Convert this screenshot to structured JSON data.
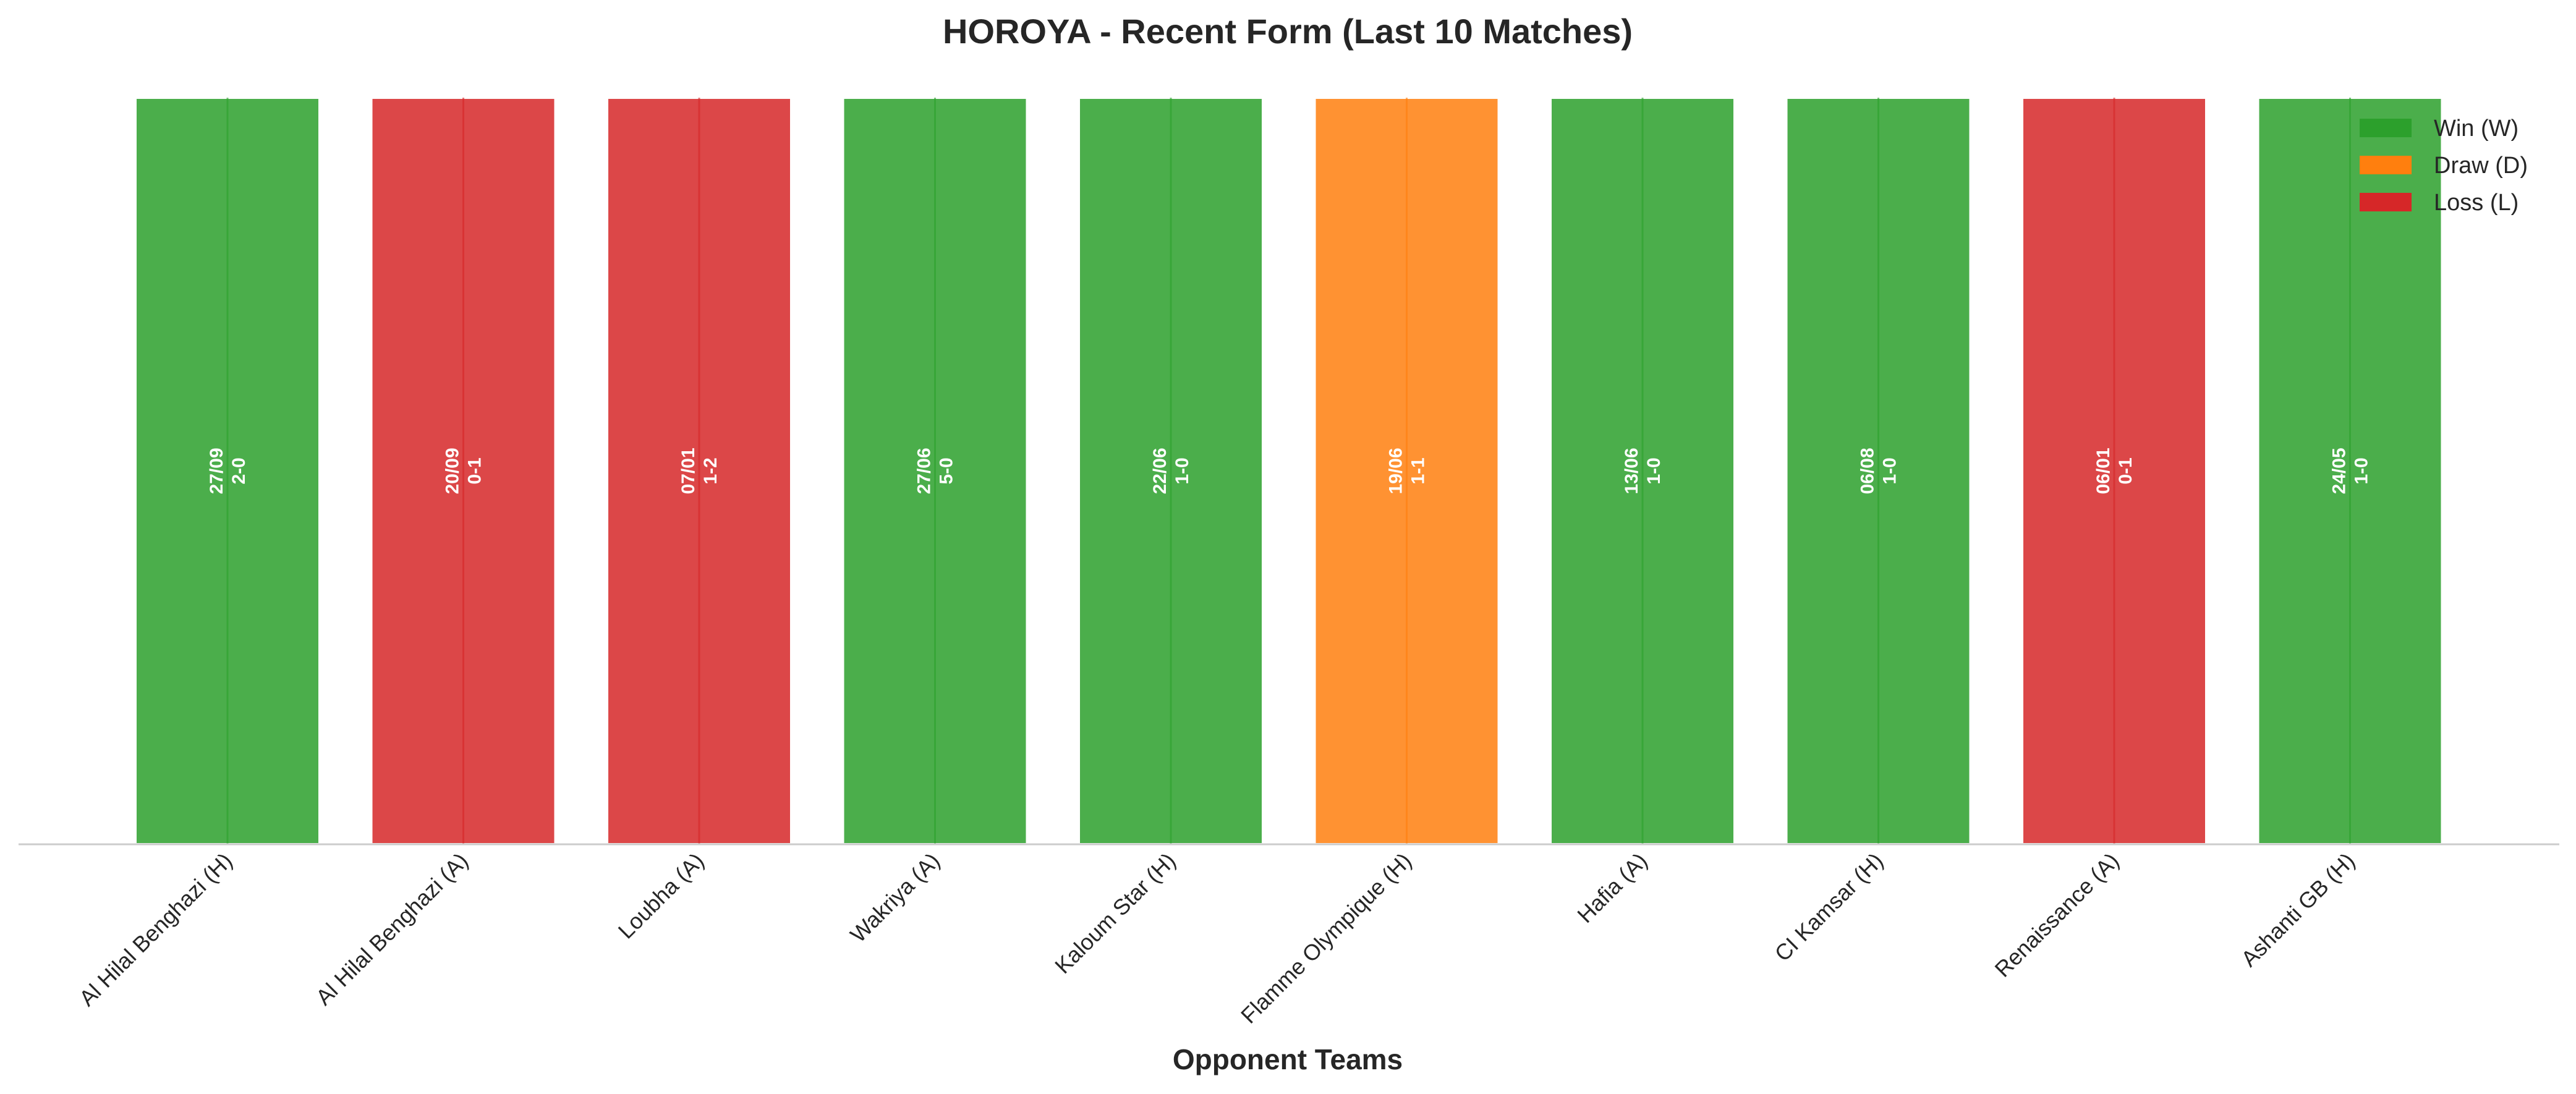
{
  "chart_data": {
    "type": "bar",
    "title": "HOROYA - Recent Form (Last 10 Matches)",
    "xlabel": "Opponent Teams",
    "ylabel": "",
    "ylim": [
      0,
      1
    ],
    "grid": false,
    "legend_position": "top-right",
    "categories": [
      "Al Hilal Benghazi (H)",
      "Al Hilal Benghazi (A)",
      "Loubha (A)",
      "Wakriya (A)",
      "Kaloum Star (H)",
      "Flamme Olympique (H)",
      "Hafia (A)",
      "CI Kamsar (H)",
      "Renaissance (A)",
      "Ashanti GB (H)"
    ],
    "values": [
      1,
      1,
      1,
      1,
      1,
      1,
      1,
      1,
      1,
      1
    ],
    "results": [
      "W",
      "L",
      "L",
      "W",
      "W",
      "D",
      "W",
      "W",
      "L",
      "W"
    ],
    "dates": [
      "27/09",
      "20/09",
      "07/01",
      "27/06",
      "22/06",
      "19/06",
      "13/06",
      "06/08",
      "06/01",
      "24/05"
    ],
    "scores": [
      "2-0",
      "0-1",
      "1-2",
      "5-0",
      "1-0",
      "1-1",
      "1-0",
      "1-0",
      "0-1",
      "1-0"
    ],
    "legend": [
      {
        "key": "W",
        "label": "Win (W)",
        "color": "#2ca02c"
      },
      {
        "key": "D",
        "label": "Draw (D)",
        "color": "#ff7f0e"
      },
      {
        "key": "L",
        "label": "Loss (L)",
        "color": "#d62728"
      }
    ]
  }
}
